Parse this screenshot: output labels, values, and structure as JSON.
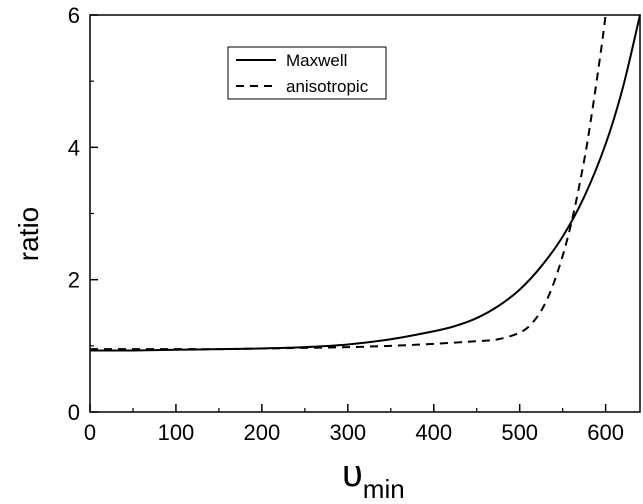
{
  "chart_data": {
    "type": "line",
    "title": "",
    "xlabel_symbol": "υ",
    "xlabel_subscript": "min",
    "ylabel": "ratio",
    "xlim": [
      0,
      640
    ],
    "ylim": [
      0,
      6
    ],
    "xticks": [
      0,
      100,
      200,
      300,
      400,
      500,
      600
    ],
    "yticks": [
      0,
      2,
      4,
      6
    ],
    "grid": false,
    "legend_position": "top-center",
    "series": [
      {
        "name": "Maxwell",
        "style": "solid",
        "color": "#000000",
        "x": [
          0,
          50,
          100,
          150,
          200,
          250,
          300,
          350,
          400,
          425,
          450,
          475,
          500,
          525,
          550,
          575,
          600,
          620,
          640
        ],
        "y": [
          0.93,
          0.93,
          0.94,
          0.95,
          0.96,
          0.98,
          1.02,
          1.1,
          1.22,
          1.3,
          1.42,
          1.6,
          1.85,
          2.2,
          2.65,
          3.25,
          4.05,
          4.9,
          6.0
        ]
      },
      {
        "name": "anisotropic",
        "style": "dashed",
        "color": "#000000",
        "x": [
          0,
          50,
          100,
          150,
          200,
          250,
          300,
          350,
          400,
          450,
          475,
          500,
          515,
          530,
          545,
          560,
          575,
          585,
          595,
          600
        ],
        "y": [
          0.95,
          0.95,
          0.95,
          0.95,
          0.96,
          0.97,
          0.98,
          1.0,
          1.03,
          1.07,
          1.1,
          1.2,
          1.35,
          1.65,
          2.15,
          2.85,
          3.8,
          4.6,
          5.5,
          6.0
        ]
      }
    ]
  }
}
